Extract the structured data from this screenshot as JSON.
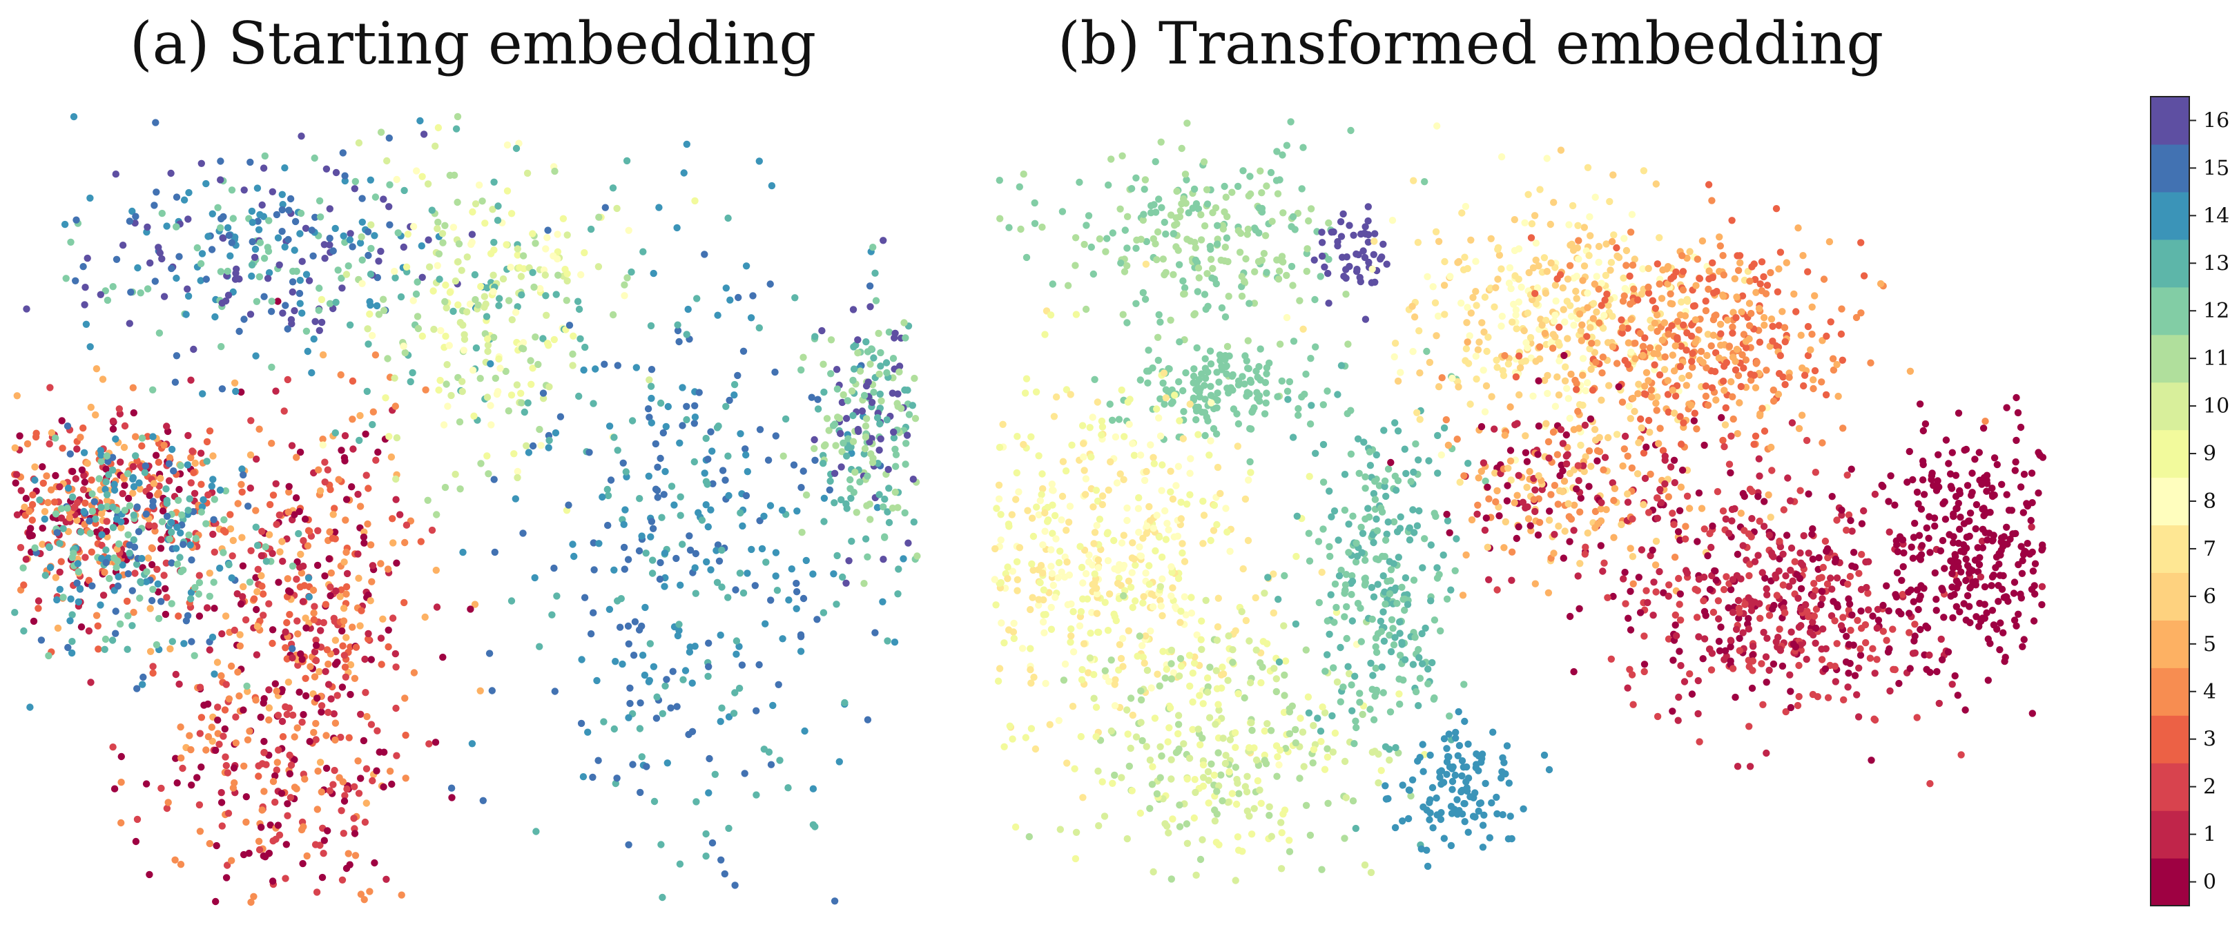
{
  "chart_data": [
    {
      "type": "scatter",
      "title": "(a) Starting embedding",
      "xlabel": "",
      "ylabel": "",
      "axes_visible": false,
      "grid": false,
      "color_by": "class label (0-16)",
      "cluster_summary": [
        {
          "x": 0.1,
          "y": 0.5,
          "labels": [
            0,
            1,
            2,
            3,
            4,
            5
          ]
        },
        {
          "x": 0.33,
          "y": 0.4,
          "labels": [
            0,
            1,
            2,
            3,
            4,
            5
          ]
        },
        {
          "x": 0.3,
          "y": 0.16,
          "labels": [
            0,
            2,
            4
          ]
        },
        {
          "x": 0.14,
          "y": 0.45,
          "labels": [
            12,
            13,
            14,
            15
          ]
        },
        {
          "x": 0.27,
          "y": 0.82,
          "labels": [
            14,
            15,
            16,
            12
          ]
        },
        {
          "x": 0.52,
          "y": 0.76,
          "labels": [
            8,
            9,
            10,
            11,
            13
          ]
        },
        {
          "x": 0.75,
          "y": 0.45,
          "labels": [
            13,
            14,
            15
          ]
        },
        {
          "x": 0.95,
          "y": 0.6,
          "labels": [
            11,
            12,
            13,
            16
          ]
        }
      ]
    },
    {
      "type": "scatter",
      "title": "(b) Transformed embedding",
      "xlabel": "",
      "ylabel": "",
      "axes_visible": false,
      "grid": false,
      "color_by": "class label (0-16)",
      "cluster_summary": [
        {
          "x": 0.2,
          "y": 0.85,
          "labels": [
            11,
            12
          ]
        },
        {
          "x": 0.21,
          "y": 0.65,
          "labels": [
            12
          ]
        },
        {
          "x": 0.34,
          "y": 0.83,
          "labels": [
            16
          ]
        },
        {
          "x": 0.1,
          "y": 0.42,
          "labels": [
            7,
            8,
            9
          ]
        },
        {
          "x": 0.22,
          "y": 0.18,
          "labels": [
            9,
            10,
            11
          ]
        },
        {
          "x": 0.37,
          "y": 0.4,
          "labels": [
            13,
            12
          ]
        },
        {
          "x": 0.44,
          "y": 0.12,
          "labels": [
            14
          ]
        },
        {
          "x": 0.53,
          "y": 0.75,
          "labels": [
            6,
            7,
            8
          ]
        },
        {
          "x": 0.68,
          "y": 0.72,
          "labels": [
            3,
            4,
            5
          ]
        },
        {
          "x": 0.55,
          "y": 0.53,
          "labels": [
            0,
            1,
            4,
            5,
            6
          ]
        },
        {
          "x": 0.74,
          "y": 0.38,
          "labels": [
            0,
            1,
            2
          ]
        },
        {
          "x": 0.93,
          "y": 0.45,
          "labels": [
            0
          ]
        }
      ]
    }
  ],
  "colorbar": {
    "ticks": [
      "0",
      "1",
      "2",
      "3",
      "4",
      "5",
      "6",
      "7",
      "8",
      "9",
      "10",
      "11",
      "12",
      "13",
      "14",
      "15",
      "16"
    ],
    "colors": [
      "#9e0142",
      "#c0254a",
      "#d8434e",
      "#ec6145",
      "#f78d51",
      "#fdb163",
      "#fed27f",
      "#fee793",
      "#fffebe",
      "#f2fa9c",
      "#d8ef9b",
      "#b0df9c",
      "#82cda5",
      "#5db6a9",
      "#3b94b8",
      "#4272b2",
      "#5e4fa2"
    ]
  }
}
